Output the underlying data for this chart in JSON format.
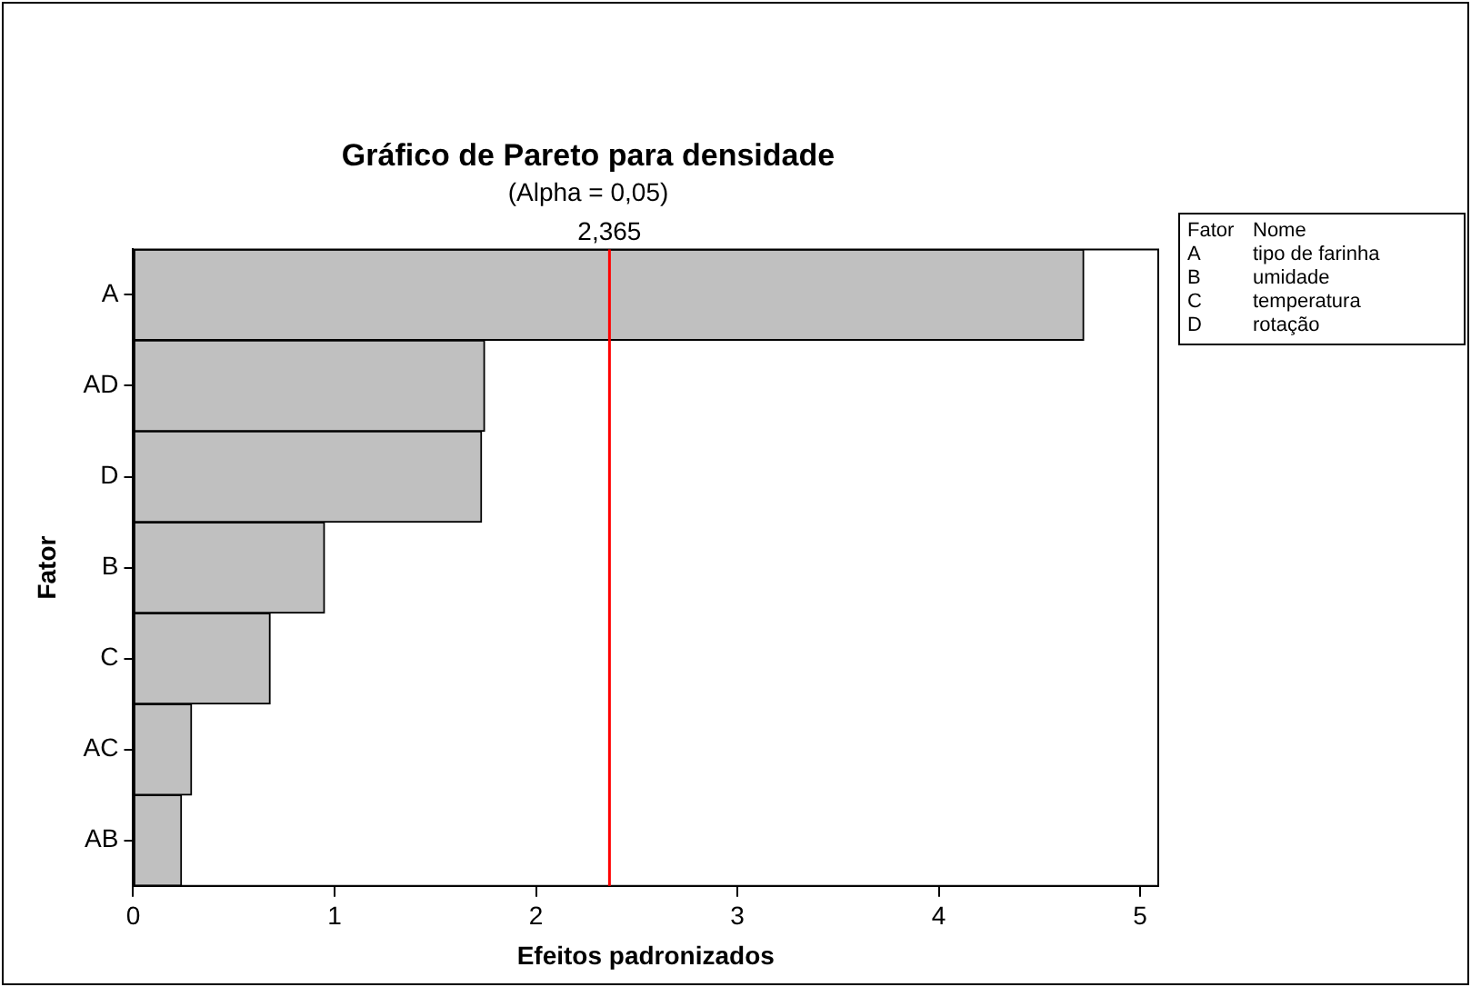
{
  "chart_data": {
    "type": "bar",
    "orientation": "horizontal",
    "title": "Gráfico de Pareto para densidade",
    "subtitle": "(Alpha = 0,05)",
    "xlabel": "Efeitos padronizados",
    "ylabel": "Fator",
    "categories": [
      "A",
      "AD",
      "D",
      "B",
      "C",
      "AC",
      "AB"
    ],
    "values": [
      4.72,
      1.745,
      1.73,
      0.95,
      0.68,
      0.29,
      0.24
    ],
    "color": "#c0c0c0",
    "xlim": [
      0,
      5.09
    ],
    "xticks": [
      0,
      1,
      2,
      3,
      4,
      5
    ],
    "grid": false,
    "legend": false,
    "ref_lines": [
      {
        "axis": "x",
        "value": 2.365,
        "label": "2,365",
        "color": "#ff0000"
      }
    ],
    "annotations": [
      "Fator",
      "Nome",
      "A",
      "tipo de farinha",
      "B",
      "umidade",
      "C",
      "temperatura",
      "D",
      "rotação"
    ]
  }
}
